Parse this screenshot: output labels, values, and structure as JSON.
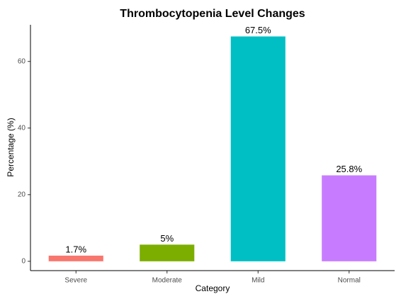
{
  "chart_data": {
    "type": "bar",
    "title": "Thrombocytopenia Level Changes",
    "x_label": "Category",
    "y_label": "Percentage (%)",
    "categories": [
      "Severe",
      "Moderate",
      "Mild",
      "Normal"
    ],
    "values": [
      1.7,
      5,
      67.5,
      25.8
    ],
    "value_labels": [
      "1.7%",
      "5%",
      "67.5%",
      "25.8%"
    ],
    "colors": [
      "#F8766D",
      "#7CAE00",
      "#00BFC4",
      "#C77CFF"
    ],
    "ylim": [
      -2.8,
      71
    ],
    "yticks": [
      0,
      20,
      40,
      60
    ],
    "grid": false
  }
}
